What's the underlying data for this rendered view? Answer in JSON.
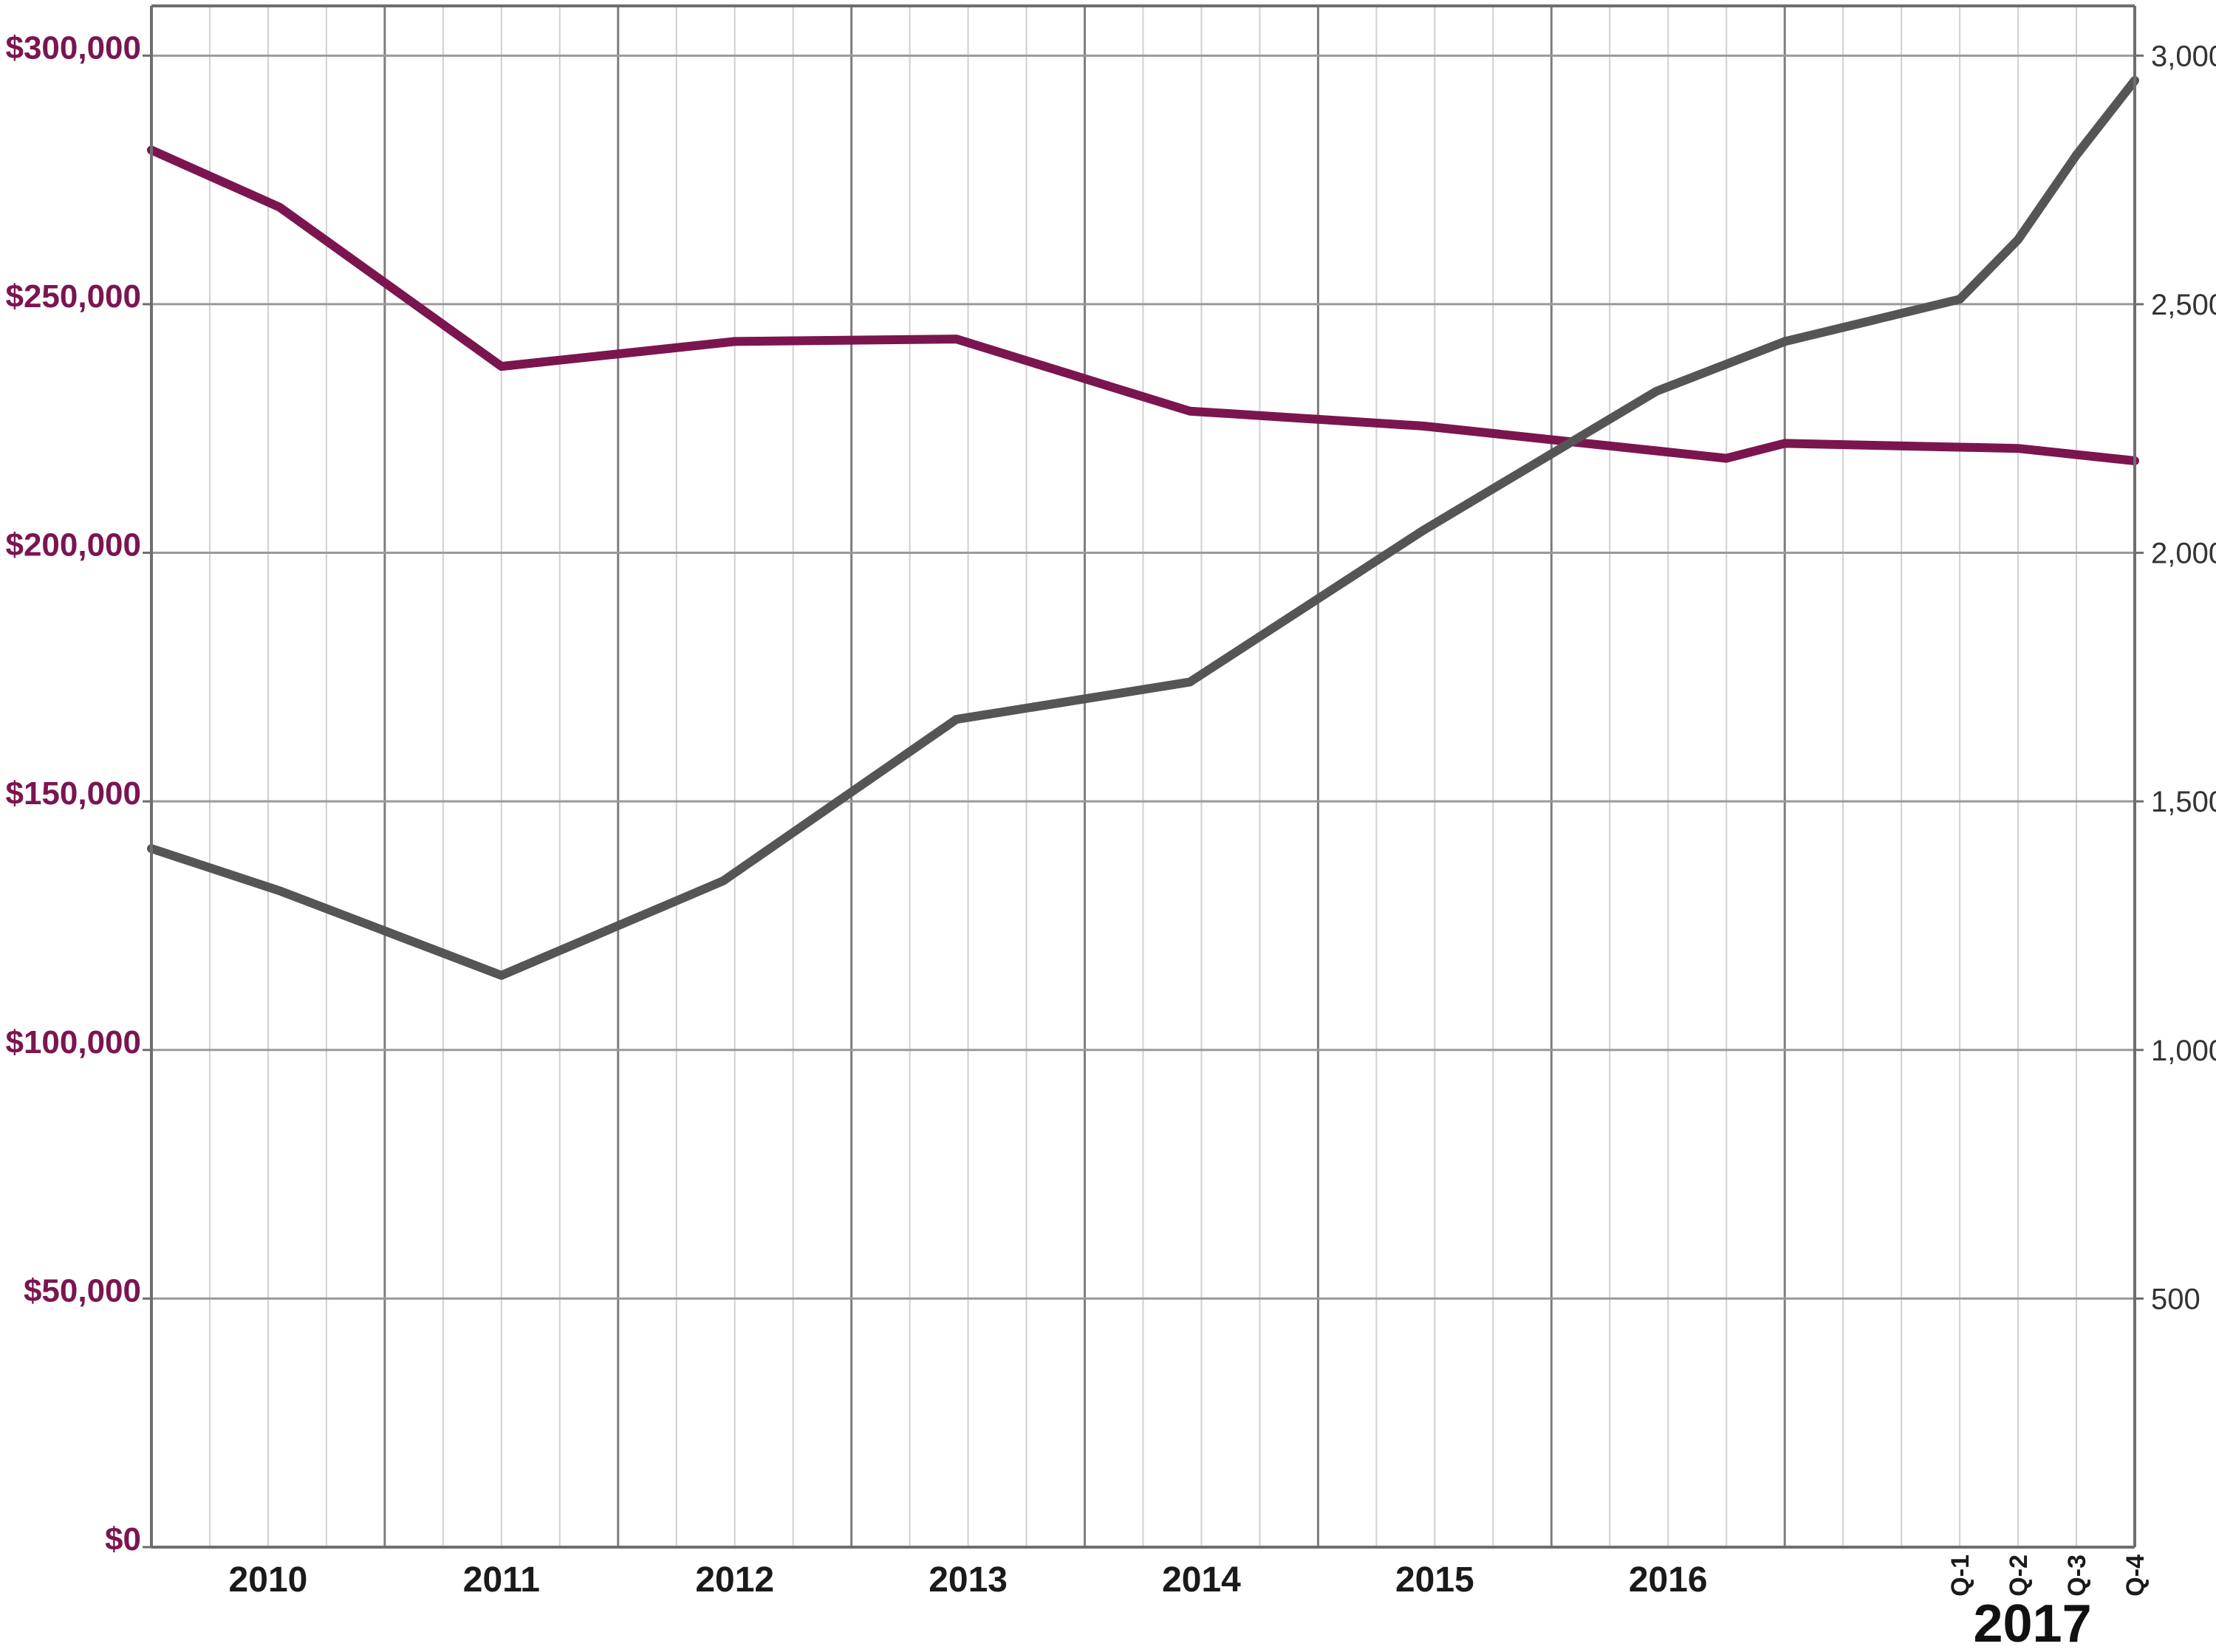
{
  "chart_data": {
    "type": "line",
    "title": "",
    "xlabel": "",
    "ylabel_left": "",
    "ylabel_right": "",
    "grid": true,
    "legend": "none",
    "x_tick_labels": [
      {
        "label": "2010",
        "x": 2010.0
      },
      {
        "label": "2011",
        "x": 2011.0
      },
      {
        "label": "2012",
        "x": 2012.0
      },
      {
        "label": "2013",
        "x": 2013.0
      },
      {
        "label": "2014",
        "x": 2014.0
      },
      {
        "label": "2015",
        "x": 2015.0
      },
      {
        "label": "2016",
        "x": 2016.0
      }
    ],
    "quarter_tick_labels": [
      {
        "label": "Q-1",
        "x": 2017.25
      },
      {
        "label": "Q-2",
        "x": 2017.5
      },
      {
        "label": "Q-3",
        "x": 2017.75
      },
      {
        "label": "Q-4",
        "x": 2018.0
      }
    ],
    "quarter_group_label": "2017",
    "xlim": [
      2009.5,
      2018.0
    ],
    "y_left": {
      "min": 0,
      "max": 310000,
      "ticks": [
        0,
        50000,
        100000,
        150000,
        200000,
        250000,
        300000
      ],
      "tick_labels": [
        "$0",
        "$50,000",
        "$100,000",
        "$150,000",
        "$200,000",
        "$250,000",
        "$300,000"
      ],
      "color": "#7b1550"
    },
    "y_right": {
      "min": 0,
      "max": 3100,
      "ticks": [
        500,
        1000,
        1500,
        2000,
        2500,
        3000
      ],
      "tick_labels": [
        "500",
        "1,000",
        "1,500",
        "2,000",
        "2,500",
        "3,000"
      ],
      "color": "#333333"
    },
    "series": [
      {
        "axis": "left",
        "color": "#7b1550",
        "points": [
          [
            2009.5,
            281000
          ],
          [
            2010.05,
            269500
          ],
          [
            2011.0,
            237500
          ],
          [
            2012.0,
            242500
          ],
          [
            2012.95,
            243000
          ],
          [
            2013.95,
            228500
          ],
          [
            2014.95,
            225500
          ],
          [
            2015.95,
            220500
          ],
          [
            2016.25,
            219000
          ],
          [
            2016.5,
            222000
          ],
          [
            2017.5,
            221000
          ],
          [
            2018.0,
            218500
          ]
        ]
      },
      {
        "axis": "right",
        "color": "#555555",
        "points": [
          [
            2009.5,
            1405
          ],
          [
            2010.05,
            1320
          ],
          [
            2011.0,
            1150
          ],
          [
            2011.95,
            1340
          ],
          [
            2012.95,
            1665
          ],
          [
            2013.95,
            1740
          ],
          [
            2014.95,
            2045
          ],
          [
            2015.95,
            2325
          ],
          [
            2016.5,
            2425
          ],
          [
            2017.25,
            2510
          ],
          [
            2017.5,
            2630
          ],
          [
            2017.75,
            2800
          ],
          [
            2018.0,
            2950
          ]
        ]
      }
    ]
  }
}
